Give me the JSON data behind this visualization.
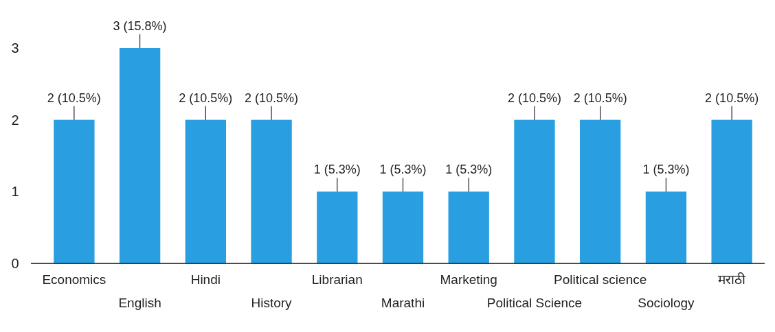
{
  "chart_data": {
    "type": "bar",
    "categories": [
      "Economics",
      "English",
      "Hindi",
      "History",
      "Librarian",
      "Marathi",
      "Marketing",
      "Political Science",
      "Political science",
      "Sociology",
      "मराठी"
    ],
    "values": [
      2,
      3,
      2,
      2,
      1,
      1,
      1,
      2,
      2,
      1,
      2
    ],
    "value_labels": [
      "2 (10.5%)",
      "3 (15.8%)",
      "2 (10.5%)",
      "2 (10.5%)",
      "1 (5.3%)",
      "1 (5.3%)",
      "1 (5.3%)",
      "2 (10.5%)",
      "2 (10.5%)",
      "1 (5.3%)",
      "2 (10.5%)"
    ],
    "color": "#299fe1",
    "ylim": [
      0,
      3
    ],
    "yticks": [
      0,
      1,
      2,
      3
    ]
  }
}
